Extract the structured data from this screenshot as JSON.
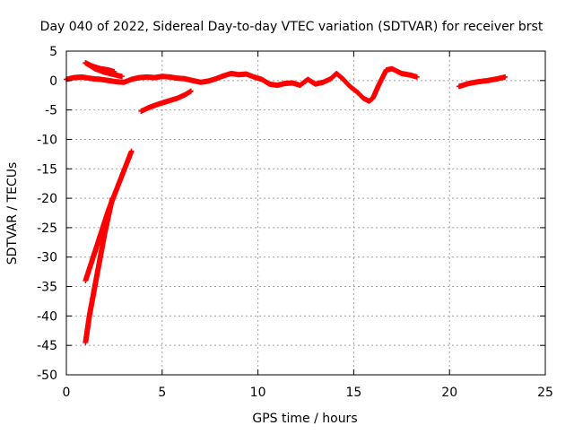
{
  "chart_data": {
    "type": "scatter",
    "title": "Day 040 of 2022, Sidereal Day-to-day VTEC variation (SDTVAR) for receiver brst",
    "xlabel": "GPS time / hours",
    "ylabel": "SDTVAR / TECUs",
    "xlim": [
      0,
      25
    ],
    "ylim": [
      -50,
      5
    ],
    "x_ticks": [
      0,
      5,
      10,
      15,
      20,
      25
    ],
    "y_ticks": [
      5,
      0,
      -5,
      -10,
      -15,
      -20,
      -25,
      -30,
      -35,
      -40,
      -45,
      -50
    ],
    "grid": true,
    "legend": "none",
    "marker": "plus",
    "series_color": "#ff0000",
    "series": [
      {
        "segments": [
          [
            [
              0.0,
              0.2
            ],
            [
              0.4,
              0.5
            ],
            [
              0.8,
              0.6
            ],
            [
              1.0,
              0.5
            ],
            [
              1.4,
              0.3
            ],
            [
              1.8,
              0.2
            ],
            [
              2.2,
              0.0
            ],
            [
              2.6,
              -0.2
            ],
            [
              3.0,
              -0.3
            ],
            [
              3.4,
              0.2
            ],
            [
              3.8,
              0.5
            ],
            [
              4.2,
              0.6
            ],
            [
              4.6,
              0.5
            ],
            [
              5.0,
              0.7
            ],
            [
              5.4,
              0.6
            ],
            [
              5.8,
              0.4
            ],
            [
              6.2,
              0.3
            ],
            [
              6.6,
              0.0
            ],
            [
              7.0,
              -0.3
            ],
            [
              7.4,
              -0.1
            ],
            [
              7.8,
              0.3
            ],
            [
              8.2,
              0.8
            ],
            [
              8.6,
              1.2
            ],
            [
              9.0,
              1.0
            ],
            [
              9.4,
              1.1
            ],
            [
              9.8,
              0.6
            ],
            [
              10.2,
              0.2
            ],
            [
              10.6,
              -0.6
            ],
            [
              11.0,
              -0.8
            ],
            [
              11.4,
              -0.5
            ],
            [
              11.8,
              -0.4
            ],
            [
              12.2,
              -0.8
            ],
            [
              12.6,
              0.2
            ],
            [
              13.0,
              -0.6
            ],
            [
              13.4,
              -0.3
            ],
            [
              13.8,
              0.3
            ],
            [
              14.1,
              1.2
            ],
            [
              14.4,
              0.4
            ],
            [
              14.8,
              -1.0
            ],
            [
              15.2,
              -2.0
            ],
            [
              15.5,
              -3.0
            ],
            [
              15.8,
              -3.5
            ],
            [
              16.0,
              -3.0
            ],
            [
              16.3,
              -0.8
            ],
            [
              16.7,
              1.8
            ],
            [
              17.0,
              2.0
            ],
            [
              17.5,
              1.2
            ],
            [
              18.0,
              0.9
            ],
            [
              18.3,
              0.6
            ]
          ],
          [
            [
              1.0,
              3.0
            ],
            [
              1.4,
              2.4
            ],
            [
              1.8,
              2.0
            ],
            [
              2.2,
              1.8
            ],
            [
              2.5,
              1.5
            ]
          ],
          [
            [
              1.0,
              3.0
            ],
            [
              1.5,
              2.0
            ],
            [
              2.0,
              1.4
            ],
            [
              2.5,
              1.0
            ],
            [
              2.9,
              0.7
            ]
          ],
          [
            [
              3.9,
              -5.2
            ],
            [
              4.3,
              -4.6
            ],
            [
              4.8,
              -4.0
            ],
            [
              5.3,
              -3.5
            ],
            [
              5.8,
              -3.0
            ],
            [
              6.2,
              -2.4
            ],
            [
              6.5,
              -1.8
            ]
          ],
          [
            [
              1.0,
              -34.0
            ],
            [
              1.3,
              -31.0
            ],
            [
              1.6,
              -28.0
            ],
            [
              1.9,
              -25.0
            ],
            [
              2.2,
              -22.0
            ],
            [
              2.5,
              -19.5
            ],
            [
              2.8,
              -17.0
            ],
            [
              3.1,
              -14.5
            ],
            [
              3.4,
              -12.0
            ]
          ],
          [
            [
              1.0,
              -44.5
            ],
            [
              1.2,
              -40.0
            ],
            [
              1.4,
              -36.5
            ],
            [
              1.6,
              -33.0
            ],
            [
              1.8,
              -29.5
            ],
            [
              2.0,
              -26.0
            ],
            [
              2.2,
              -23.0
            ],
            [
              2.4,
              -20.0
            ]
          ],
          [
            [
              20.5,
              -1.0
            ],
            [
              21.0,
              -0.5
            ],
            [
              21.5,
              -0.2
            ],
            [
              22.0,
              0.0
            ],
            [
              22.5,
              0.3
            ],
            [
              22.9,
              0.6
            ]
          ]
        ]
      }
    ]
  }
}
